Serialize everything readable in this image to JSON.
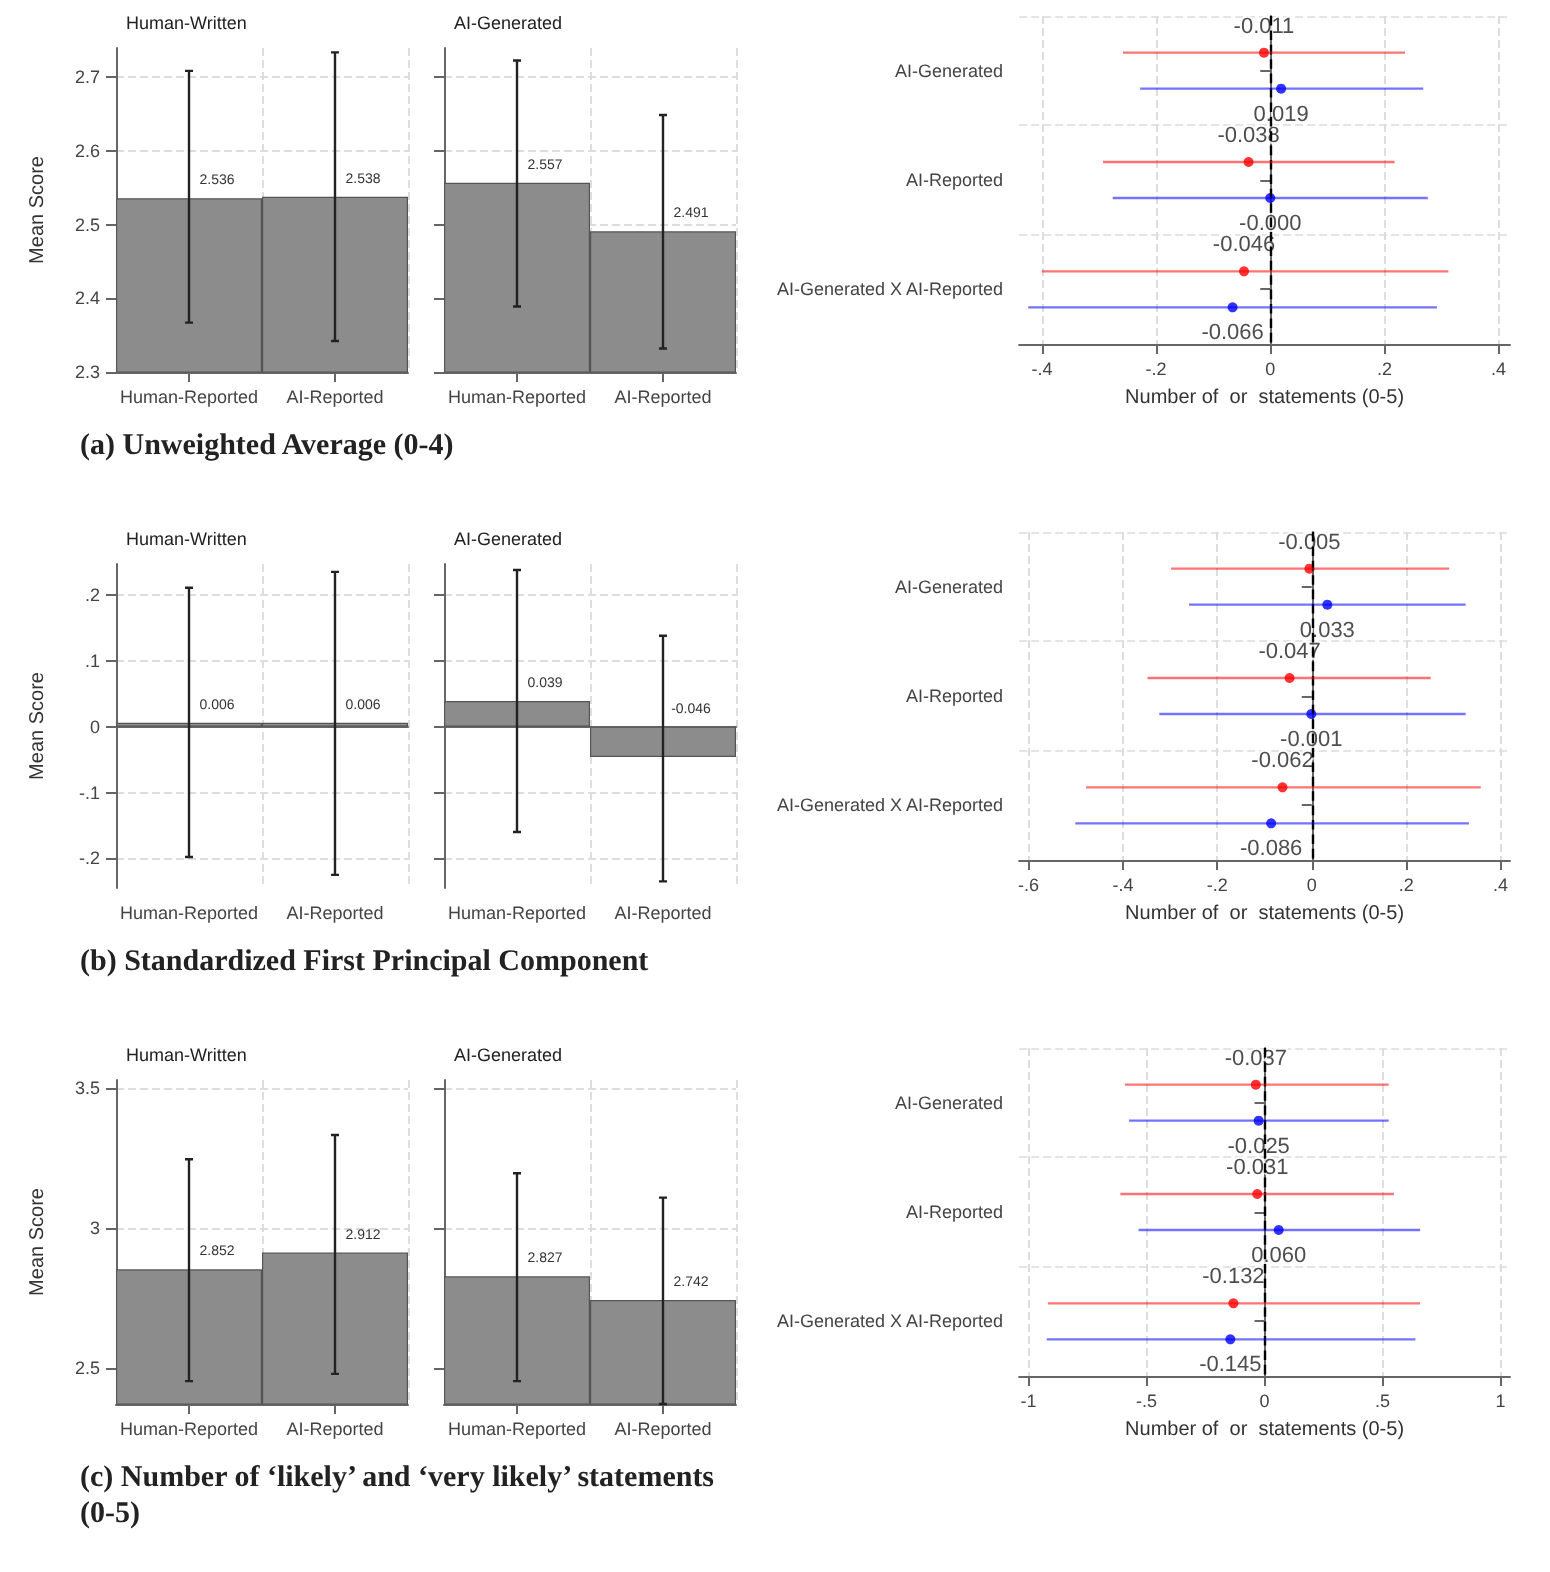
{
  "chart_data": [
    {
      "type": "bar",
      "title": "Human-Written",
      "categories": [
        "Human-Reported",
        "AI-Reported"
      ],
      "values": [
        2.536,
        2.538
      ],
      "errors": [
        [
          2.367,
          2.709
        ],
        [
          2.342,
          2.734
        ]
      ],
      "color": "#8c8c8c",
      "ylabel": "Mean Score",
      "ylim": [
        2.3,
        2.74
      ],
      "yticks": [
        2.3,
        2.4,
        2.5,
        2.6,
        2.7
      ],
      "grid": true,
      "data_labels": true,
      "annotations": [
        "(a) Unweighted Average (0-4)"
      ]
    },
    {
      "type": "bar",
      "title": "AI-Generated",
      "categories": [
        "Human-Reported",
        "AI-Reported"
      ],
      "values": [
        2.557,
        2.491
      ],
      "errors": [
        [
          2.389,
          2.723
        ],
        [
          2.332,
          2.649
        ]
      ],
      "color": "#8c8c8c",
      "ylim": [
        2.3,
        2.74
      ],
      "yticks": [
        2.3,
        2.4,
        2.5,
        2.6,
        2.7
      ],
      "grid": true,
      "data_labels": true,
      "tick_labels": "x"
    },
    {
      "type": "scatter",
      "orientation": "horizontal",
      "categories": [
        "AI-Generated",
        "AI-Reported",
        "AI-Generated X AI-Reported"
      ],
      "series": [
        {
          "color": "#ff0000",
          "values": [
            -0.011,
            -0.038,
            -0.046
          ],
          "errors": [
            [
              -0.258,
              0.236
            ],
            [
              -0.293,
              0.218
            ],
            [
              -0.4,
              0.312
            ]
          ],
          "value_labels": [
            "-0.011",
            "-0.038",
            "-0.046"
          ]
        },
        {
          "color": "#0000ff",
          "values": [
            0.019,
            0,
            -0.066
          ],
          "errors": [
            [
              -0.228,
              0.268
            ],
            [
              -0.276,
              0.276
            ],
            [
              -0.424,
              0.292
            ]
          ],
          "value_labels": [
            "0.019",
            "-0.000",
            "-0.066"
          ]
        }
      ],
      "xlabel": "Number of  or  statements (0-5)",
      "xlim": [
        -0.44,
        0.42
      ],
      "xticks": [
        {
          "value": -0.4,
          "label": "-.4"
        },
        {
          "value": -0.2,
          "label": "-.2"
        },
        0,
        {
          "value": 0.2,
          "label": ".2"
        },
        {
          "value": 0.4,
          "label": ".4"
        }
      ],
      "ref_lines": [
        {
          "axis": "x",
          "value": 0,
          "line_style": "dashed",
          "color": "#000000"
        }
      ],
      "grid": true,
      "marker": "circle"
    },
    {
      "type": "bar",
      "title": "Human-Written",
      "categories": [
        "Human-Reported",
        "AI-Reported"
      ],
      "values": [
        0.006,
        0.006
      ],
      "errors": [
        [
          -0.198,
          0.211
        ],
        [
          -0.225,
          0.235
        ]
      ],
      "color": "#8c8c8c",
      "ylabel": "Mean Score",
      "ylim": [
        -0.245,
        0.247
      ],
      "yticks": [
        {
          "value": -0.2,
          "label": "-.2"
        },
        {
          "value": -0.1,
          "label": "-.1"
        },
        0,
        {
          "value": 0.1,
          "label": ".1"
        },
        {
          "value": 0.2,
          "label": ".2"
        }
      ],
      "grid": true,
      "data_labels": true,
      "annotations": [
        "(b) Standardized First Principal Component"
      ]
    },
    {
      "type": "bar",
      "title": "AI-Generated",
      "categories": [
        "Human-Reported",
        "AI-Reported"
      ],
      "values": [
        0.039,
        -0.046
      ],
      "errors": [
        [
          -0.16,
          0.238
        ],
        [
          -0.235,
          0.138
        ]
      ],
      "color": "#8c8c8c",
      "ylim": [
        -0.245,
        0.247
      ],
      "yticks": [
        -0.2,
        -0.1,
        0,
        0.1,
        0.2
      ],
      "grid": true,
      "data_labels": true,
      "tick_labels": "x"
    },
    {
      "type": "scatter",
      "orientation": "horizontal",
      "categories": [
        "AI-Generated",
        "AI-Reported",
        "AI-Generated X AI-Reported"
      ],
      "series": [
        {
          "color": "#ff0000",
          "values": [
            -0.005,
            -0.047,
            -0.062
          ],
          "errors": [
            [
              -0.298,
              0.291
            ],
            [
              -0.348,
              0.252
            ],
            [
              -0.478,
              0.358
            ]
          ],
          "value_labels": [
            "-0.005",
            "-0.047",
            "-0.062"
          ]
        },
        {
          "color": "#0000ff",
          "values": [
            0.033,
            -0.001,
            -0.086
          ],
          "errors": [
            [
              -0.26,
              0.326
            ],
            [
              -0.323,
              0.326
            ],
            [
              -0.501,
              0.333
            ]
          ],
          "value_labels": [
            "0.033",
            "-0.001",
            "-0.086"
          ]
        }
      ],
      "xlabel": "Number of  or  statements (0-5)",
      "xlim": [
        -0.62,
        0.42
      ],
      "xticks": [
        {
          "value": -0.6,
          "label": "-.6"
        },
        {
          "value": -0.4,
          "label": "-.4"
        },
        {
          "value": -0.2,
          "label": "-.2"
        },
        0,
        {
          "value": 0.2,
          "label": ".2"
        },
        {
          "value": 0.4,
          "label": ".4"
        }
      ],
      "ref_lines": [
        {
          "axis": "x",
          "value": 0,
          "line_style": "dashed",
          "color": "#000000"
        }
      ],
      "grid": true,
      "marker": "circle"
    },
    {
      "type": "bar",
      "title": "Human-Written",
      "categories": [
        "Human-Reported",
        "AI-Reported"
      ],
      "values": [
        2.852,
        2.912
      ],
      "errors": [
        [
          2.452,
          3.246
        ],
        [
          2.478,
          3.333
        ]
      ],
      "color": "#8c8c8c",
      "ylabel": "Mean Score",
      "ylim": [
        2.37,
        3.53
      ],
      "yticks": [
        2.5,
        3,
        3.5
      ],
      "grid": true,
      "data_labels": true,
      "annotations": [
        "(c) Number of ‘likely’ and ‘very likely’ statements (0-5)"
      ]
    },
    {
      "type": "bar",
      "title": "AI-Generated",
      "categories": [
        "Human-Reported",
        "AI-Reported"
      ],
      "values": [
        2.827,
        2.742
      ],
      "errors": [
        [
          2.452,
          3.196
        ],
        [
          2.37,
          3.109
        ]
      ],
      "color": "#8c8c8c",
      "ylim": [
        2.37,
        3.53
      ],
      "yticks": [
        2.5,
        3,
        3.5
      ],
      "grid": true,
      "data_labels": true,
      "tick_labels": "x"
    },
    {
      "type": "scatter",
      "orientation": "horizontal",
      "categories": [
        "AI-Generated",
        "AI-Reported",
        "AI-Generated X AI-Reported"
      ],
      "series": [
        {
          "color": "#ff0000",
          "values": [
            -0.037,
            -0.031,
            -0.132
          ],
          "errors": [
            [
              -0.591,
              0.526
            ],
            [
              -0.611,
              0.548
            ],
            [
              -0.918,
              0.659
            ]
          ],
          "value_labels": [
            "-0.037",
            "-0.031",
            "-0.132"
          ]
        },
        {
          "color": "#0000ff",
          "values": [
            -0.025,
            0.06,
            -0.145
          ],
          "errors": [
            [
              -0.574,
              0.526
            ],
            [
              -0.534,
              0.659
            ],
            [
              -0.923,
              0.639
            ]
          ],
          "value_labels": [
            "-0.025",
            "0.060",
            "-0.145"
          ]
        }
      ],
      "xlabel": "Number of  or  statements (0-5)",
      "xlim": [
        -1.04,
        1.04
      ],
      "xticks": [
        -1,
        {
          "value": -0.5,
          "label": "-.5"
        },
        0,
        {
          "value": 0.5,
          "label": ".5"
        },
        1
      ],
      "ref_lines": [
        {
          "axis": "x",
          "value": 0,
          "line_style": "dashed",
          "color": "#000000"
        }
      ],
      "grid": true,
      "marker": "circle"
    }
  ]
}
